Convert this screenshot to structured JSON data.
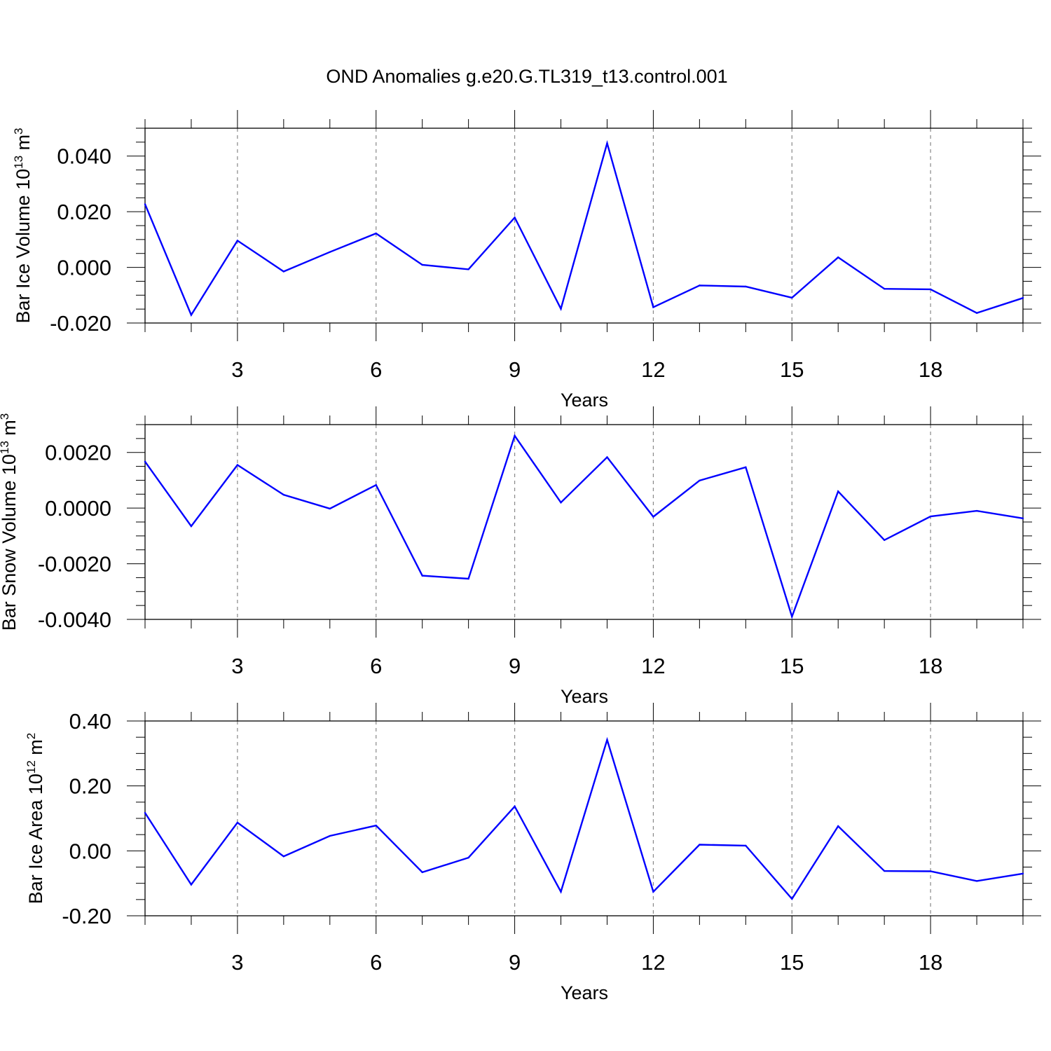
{
  "figure": {
    "title": "OND Anomalies g.e20.G.TL319_t13.control.001"
  },
  "colors": {
    "line": "#0000ff",
    "axis": "#000000",
    "grid": "#888888"
  },
  "chart_data": [
    {
      "type": "line",
      "title": "OND Anomalies g.e20.G.TL319_t13.control.001",
      "ylabel": "Bar Ice Volume 10",
      "ylabel_exp": "13",
      "ylabel_unit": " m",
      "ylabel_unit_exp": "3",
      "xlabel": "Years",
      "xlim": [
        1,
        20
      ],
      "ylim": [
        -0.02,
        0.05
      ],
      "xticks": [
        3,
        6,
        9,
        12,
        15,
        18
      ],
      "xticklabels": [
        "3",
        "6",
        "9",
        "12",
        "15",
        "18"
      ],
      "yticks": [
        -0.02,
        0.0,
        0.02,
        0.04
      ],
      "yticklabels": [
        "-0.020",
        "0.000",
        "0.020",
        "0.040"
      ],
      "grid": "vertical dashed at labeled x ticks",
      "series": [
        {
          "name": "Bar Ice Volume",
          "x": [
            1,
            2,
            3,
            4,
            5,
            6,
            7,
            8,
            9,
            10,
            11,
            12,
            13,
            14,
            15,
            16,
            17,
            18,
            19,
            20
          ],
          "values": [
            0.0227,
            -0.0171,
            0.0096,
            -0.0015,
            0.0055,
            0.0122,
            0.0009,
            -0.0007,
            0.0179,
            -0.0149,
            0.0446,
            -0.0143,
            -0.0065,
            -0.0069,
            -0.0109,
            0.0036,
            -0.0077,
            -0.0079,
            -0.0164,
            -0.011
          ]
        }
      ]
    },
    {
      "type": "line",
      "title": "",
      "ylabel": "Bar Snow Volume 10",
      "ylabel_exp": "13",
      "ylabel_unit": " m",
      "ylabel_unit_exp": "3",
      "xlabel": "Years",
      "xlim": [
        1,
        20
      ],
      "ylim": [
        -0.004,
        0.003
      ],
      "xticks": [
        3,
        6,
        9,
        12,
        15,
        18
      ],
      "xticklabels": [
        "3",
        "6",
        "9",
        "12",
        "15",
        "18"
      ],
      "yticks": [
        -0.004,
        -0.002,
        0.0,
        0.002
      ],
      "yticklabels": [
        "-0.0040",
        "-0.0020",
        "0.0000",
        "0.0020"
      ],
      "grid": "vertical dashed at labeled x ticks",
      "series": [
        {
          "name": "Bar Snow Volume",
          "x": [
            1,
            2,
            3,
            4,
            5,
            6,
            7,
            8,
            9,
            10,
            11,
            12,
            13,
            14,
            15,
            16,
            17,
            18,
            19,
            20
          ],
          "values": [
            0.00167,
            -0.00065,
            0.00155,
            0.00048,
            -2e-05,
            0.00083,
            -0.00243,
            -0.00254,
            0.0026,
            0.0002,
            0.00183,
            -0.00031,
            0.00099,
            0.00147,
            -0.0039,
            0.0006,
            -0.00115,
            -0.0003,
            -0.0001,
            -0.00037
          ]
        }
      ]
    },
    {
      "type": "line",
      "title": "",
      "ylabel": "Bar Ice Area 10",
      "ylabel_exp": "12",
      "ylabel_unit": " m",
      "ylabel_unit_exp": "2",
      "xlabel": "Years",
      "xlim": [
        1,
        20
      ],
      "ylim": [
        -0.2,
        0.4
      ],
      "xticks": [
        3,
        6,
        9,
        12,
        15,
        18
      ],
      "xticklabels": [
        "3",
        "6",
        "9",
        "12",
        "15",
        "18"
      ],
      "yticks": [
        -0.2,
        0.0,
        0.2,
        0.4
      ],
      "yticklabels": [
        "-0.20",
        "0.00",
        "0.20",
        "0.40"
      ],
      "grid": "vertical dashed at labeled x ticks",
      "series": [
        {
          "name": "Bar Ice Area",
          "x": [
            1,
            2,
            3,
            4,
            5,
            6,
            7,
            8,
            9,
            10,
            11,
            12,
            13,
            14,
            15,
            16,
            17,
            18,
            19,
            20
          ],
          "values": [
            0.117,
            -0.104,
            0.087,
            -0.017,
            0.046,
            0.078,
            -0.066,
            -0.021,
            0.137,
            -0.126,
            0.342,
            -0.126,
            0.019,
            0.016,
            -0.148,
            0.076,
            -0.062,
            -0.063,
            -0.093,
            -0.07
          ]
        }
      ]
    }
  ]
}
